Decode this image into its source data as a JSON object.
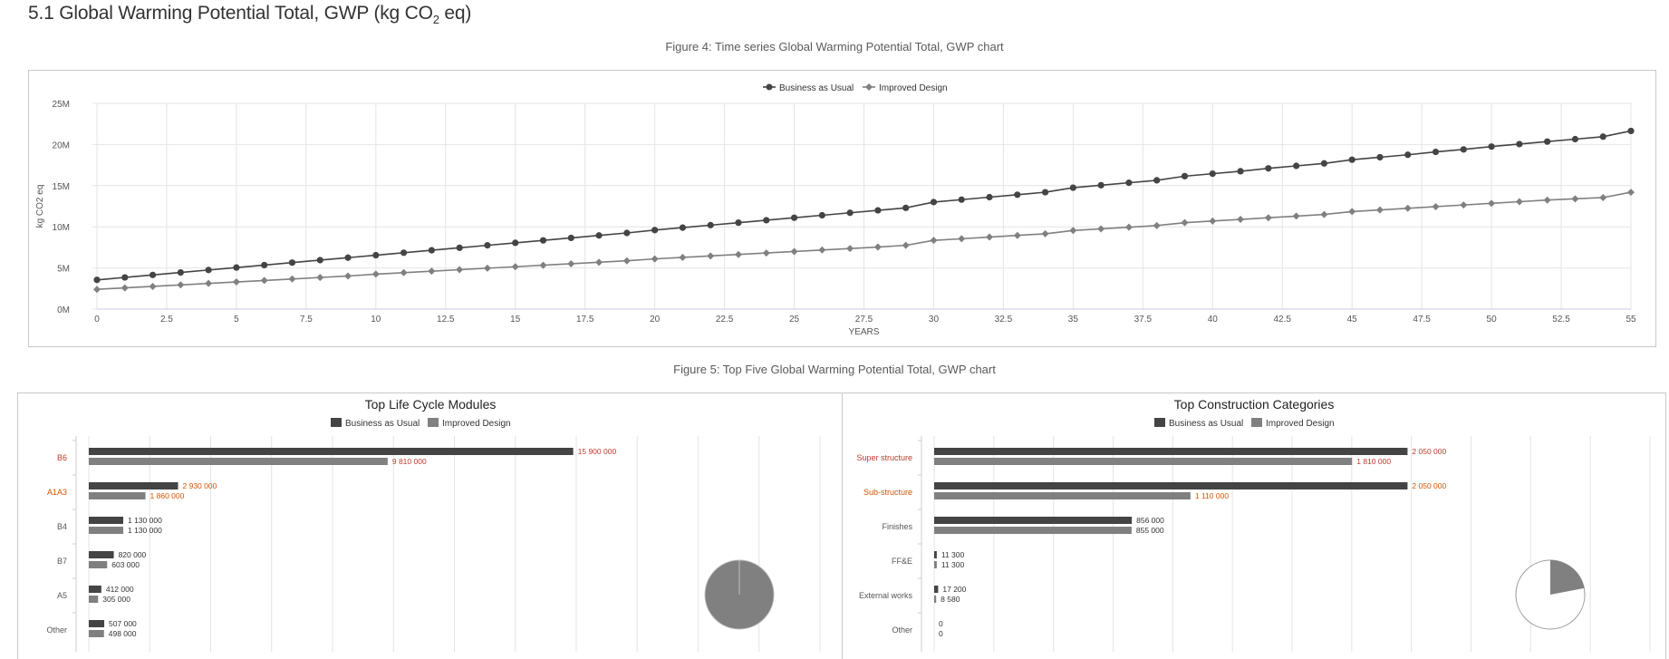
{
  "page": {
    "section_title_pre": "5.1 Global Warming Potential Total, GWP (kg CO",
    "section_title_sub": "2",
    "section_title_post": " eq)",
    "fig4_caption": "Figure 4: Time series Global Warming Potential Total, GWP chart",
    "fig5_caption": "Figure 5: Top Five Global Warming Potential Total, GWP chart"
  },
  "colors": {
    "bau": "#444444",
    "improved": "#808080",
    "grid": "#e4e4e4",
    "highlight_red": "#c0392b",
    "highlight_orange": "#d35400",
    "plain_label": "#555555"
  },
  "chart_data": [
    {
      "type": "line",
      "title": "",
      "xlabel": "YEARS",
      "ylabel": "kg CO2 eq",
      "xlim": [
        0,
        55
      ],
      "ylim": [
        0,
        25000000
      ],
      "x_ticks": [
        "0",
        "2.5",
        "5",
        "7.5",
        "10",
        "12.5",
        "15",
        "17.5",
        "20",
        "22.5",
        "25",
        "27.5",
        "30",
        "32.5",
        "35",
        "37.5",
        "40",
        "42.5",
        "45",
        "47.5",
        "50",
        "52.5",
        "55"
      ],
      "y_ticks": [
        "0M",
        "5M",
        "10M",
        "15M",
        "20M",
        "25M"
      ],
      "legend_position": "top-center",
      "grid": true,
      "x": [
        0,
        1,
        2,
        3,
        4,
        5,
        6,
        7,
        8,
        9,
        10,
        11,
        12,
        13,
        14,
        15,
        16,
        17,
        18,
        19,
        20,
        21,
        22,
        23,
        24,
        25,
        26,
        27,
        28,
        29,
        30,
        31,
        32,
        33,
        34,
        35,
        36,
        37,
        38,
        39,
        40,
        41,
        42,
        43,
        44,
        45,
        46,
        47,
        48,
        49,
        50,
        51,
        52,
        53,
        54,
        55
      ],
      "series": [
        {
          "name": "Business as Usual",
          "marker": "circle",
          "values": [
            3.55,
            3.85,
            4.15,
            4.45,
            4.75,
            5.05,
            5.35,
            5.65,
            5.95,
            6.25,
            6.55,
            6.85,
            7.15,
            7.45,
            7.75,
            8.05,
            8.35,
            8.65,
            8.95,
            9.25,
            9.6,
            9.9,
            10.2,
            10.5,
            10.8,
            11.1,
            11.4,
            11.7,
            12.0,
            12.3,
            13.0,
            13.3,
            13.6,
            13.9,
            14.2,
            14.75,
            15.05,
            15.35,
            15.65,
            16.15,
            16.45,
            16.75,
            17.1,
            17.4,
            17.7,
            18.15,
            18.45,
            18.75,
            19.1,
            19.4,
            19.75,
            20.05,
            20.35,
            20.65,
            20.95,
            21.65
          ]
        },
        {
          "name": "Improved Design",
          "marker": "diamond",
          "values": [
            2.4,
            2.58,
            2.76,
            2.94,
            3.12,
            3.3,
            3.48,
            3.66,
            3.84,
            4.02,
            4.25,
            4.43,
            4.61,
            4.79,
            4.97,
            5.15,
            5.33,
            5.51,
            5.69,
            5.87,
            6.1,
            6.28,
            6.46,
            6.64,
            6.82,
            7.0,
            7.18,
            7.36,
            7.54,
            7.75,
            8.35,
            8.55,
            8.75,
            8.95,
            9.15,
            9.55,
            9.75,
            9.95,
            10.15,
            10.5,
            10.7,
            10.9,
            11.1,
            11.3,
            11.5,
            11.85,
            12.05,
            12.25,
            12.45,
            12.65,
            12.85,
            13.05,
            13.25,
            13.4,
            13.55,
            14.2
          ]
        }
      ],
      "value_unit_note": "values in millions (M)"
    },
    {
      "type": "bar",
      "title": "Top Life Cycle Modules",
      "orientation": "horizontal",
      "legend_position": "top-center",
      "categories": [
        "B6",
        "A1A3",
        "B4",
        "B7",
        "A5",
        "Other"
      ],
      "category_emphasis": [
        "red",
        "orange",
        "normal",
        "normal",
        "normal",
        "normal"
      ],
      "series": [
        {
          "name": "Business as Usual",
          "values": [
            15900000,
            2930000,
            1130000,
            820000,
            412000,
            507000
          ],
          "labels": [
            "15 900 000",
            "2 930 000",
            "1 130 000",
            "820 000",
            "412 000",
            "507 000"
          ]
        },
        {
          "name": "Improved Design",
          "values": [
            9810000,
            1860000,
            1130000,
            603000,
            305000,
            498000
          ],
          "labels": [
            "9 810 000",
            "1 860 000",
            "1 130 000",
            "603 000",
            "305 000",
            "498 000"
          ]
        }
      ],
      "xlim": [
        0,
        24000000
      ],
      "pie_fraction": 1.0
    },
    {
      "type": "bar",
      "title": "Top Construction Categories",
      "orientation": "horizontal",
      "legend_position": "top-center",
      "categories": [
        "Super structure",
        "Sub-structure",
        "Finishes",
        "FF&E",
        "External works",
        "Other"
      ],
      "category_emphasis": [
        "red",
        "orange",
        "normal",
        "normal",
        "normal",
        "normal"
      ],
      "series": [
        {
          "name": "Business as Usual",
          "values": [
            2050000,
            2050000,
            856000,
            11300,
            17200,
            0
          ],
          "labels": [
            "2 050 000",
            "2 050 000",
            "856 000",
            "11 300",
            "17 200",
            "0"
          ]
        },
        {
          "name": "Improved Design",
          "values": [
            1810000,
            1110000,
            855000,
            11300,
            8580,
            0
          ],
          "labels": [
            "1 810 000",
            "1 110 000",
            "855 000",
            "11 300",
            "8 580",
            "0"
          ]
        }
      ],
      "xlim": [
        0,
        3100000
      ],
      "pie_fraction": 0.22
    }
  ]
}
